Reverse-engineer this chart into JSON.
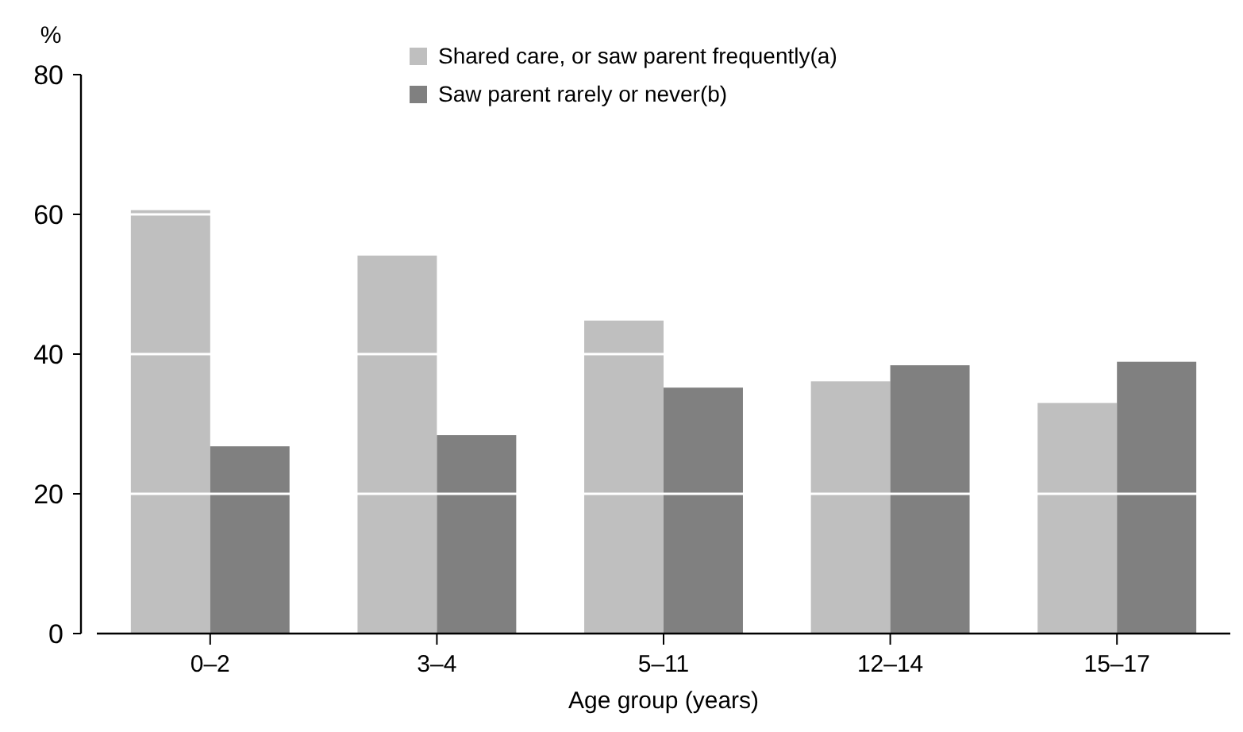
{
  "chart_data": {
    "type": "bar",
    "ylabel": "%",
    "xlabel": "Age group (years)",
    "categories": [
      "0–2",
      "3–4",
      "5–11",
      "12–14",
      "15–17"
    ],
    "series": [
      {
        "name": "Shared care, or saw parent frequently(a)",
        "color": "#bfbfbf",
        "values": [
          60.6,
          54.1,
          44.8,
          36.1,
          33.0
        ]
      },
      {
        "name": "Saw parent rarely or never(b)",
        "color": "#808080",
        "values": [
          26.8,
          28.4,
          35.2,
          38.4,
          38.9
        ]
      }
    ],
    "ylim": [
      0,
      80
    ],
    "yticks": [
      0,
      20,
      40,
      60,
      80
    ],
    "grid": "y",
    "legend": "top"
  }
}
